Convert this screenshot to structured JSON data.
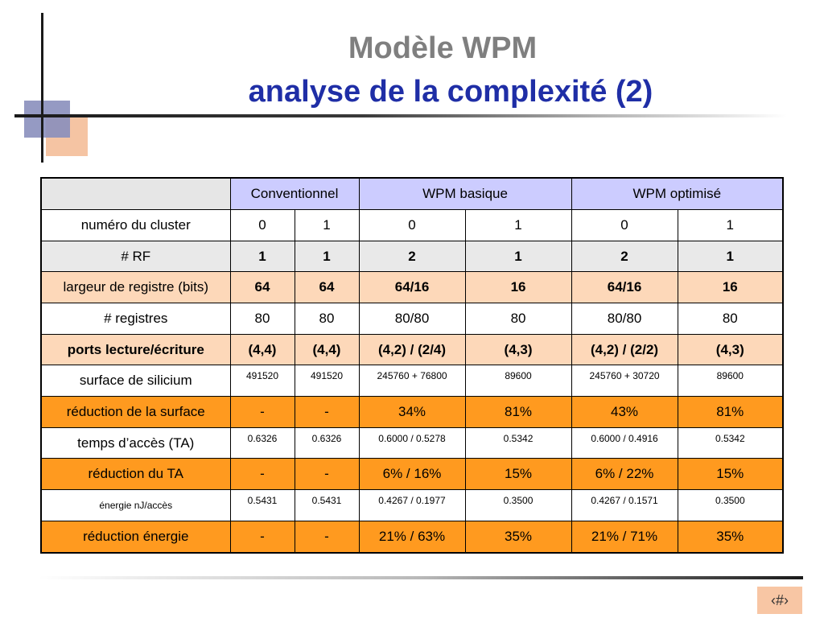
{
  "title": {
    "line1": "Modèle WPM",
    "line2": "analyse de la complexité (2)"
  },
  "footer": {
    "page_number": "‹#›"
  },
  "table": {
    "groups": [
      "Conventionnel",
      "WPM basique",
      "WPM optimisé"
    ],
    "rows": [
      {
        "label": "numéro du cluster",
        "values": [
          "0",
          "1",
          "0",
          "1",
          "0",
          "1"
        ]
      },
      {
        "label": "# RF",
        "values": [
          "1",
          "1",
          "2",
          "1",
          "2",
          "1"
        ]
      },
      {
        "label": "largeur de registre (bits)",
        "values": [
          "64",
          "64",
          "64/16",
          "16",
          "64/16",
          "16"
        ]
      },
      {
        "label": "# registres",
        "values": [
          "80",
          "80",
          "80/80",
          "80",
          "80/80",
          "80"
        ]
      },
      {
        "label": "ports lecture/écriture",
        "values": [
          "(4,4)",
          "(4,4)",
          "(4,2) / (2/4)",
          "(4,3)",
          "(4,2) / (2/2)",
          "(4,3)"
        ]
      },
      {
        "label": "surface de silicium",
        "values": [
          "491520",
          "491520",
          "245760 + 76800",
          "89600",
          "245760 + 30720",
          "89600"
        ]
      },
      {
        "label": "réduction de la surface",
        "values": [
          "-",
          "-",
          "34%",
          "81%",
          "43%",
          "81%"
        ]
      },
      {
        "label": "temps d’accès (TA)",
        "values": [
          "0.6326",
          "0.6326",
          "0.6000 / 0.5278",
          "0.5342",
          "0.6000 / 0.4916",
          "0.5342"
        ]
      },
      {
        "label": "réduction du TA",
        "values": [
          "-",
          "-",
          "6% / 16%",
          "15%",
          "6% / 22%",
          "15%"
        ]
      },
      {
        "label": "énergie nJ/accès",
        "values": [
          "0.5431",
          "0.5431",
          "0.4267 / 0.1977",
          "0.3500",
          "0.4267 / 0.1571",
          "0.3500"
        ]
      },
      {
        "label": "réduction énergie",
        "values": [
          "-",
          "-",
          "21% / 63%",
          "35%",
          "21% / 71%",
          "35%"
        ]
      }
    ]
  },
  "colors": {
    "title_gray": "#7f7f7f",
    "title_blue": "#1f2ea6",
    "header_lavender": "#ccccff",
    "row_peach": "#fdd8b9",
    "row_orange": "#ff9a1f",
    "row_grey": "#e9e9e9"
  }
}
